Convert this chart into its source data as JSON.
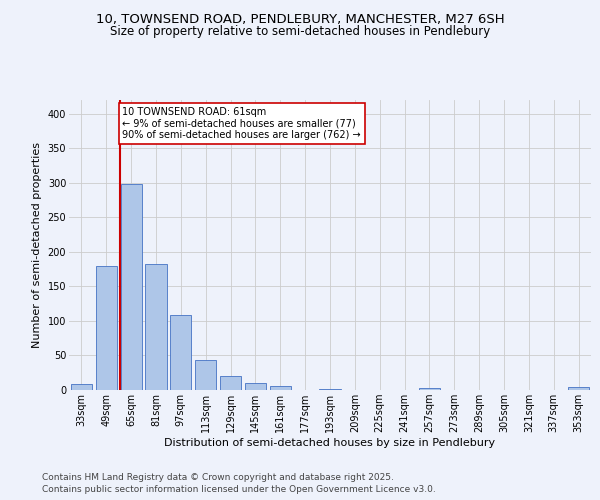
{
  "title_line1": "10, TOWNSEND ROAD, PENDLEBURY, MANCHESTER, M27 6SH",
  "title_line2": "Size of property relative to semi-detached houses in Pendlebury",
  "xlabel": "Distribution of semi-detached houses by size in Pendlebury",
  "ylabel": "Number of semi-detached properties",
  "footer_line1": "Contains HM Land Registry data © Crown copyright and database right 2025.",
  "footer_line2": "Contains public sector information licensed under the Open Government Licence v3.0.",
  "bin_labels": [
    "33sqm",
    "49sqm",
    "65sqm",
    "81sqm",
    "97sqm",
    "113sqm",
    "129sqm",
    "145sqm",
    "161sqm",
    "177sqm",
    "193sqm",
    "209sqm",
    "225sqm",
    "241sqm",
    "257sqm",
    "273sqm",
    "289sqm",
    "305sqm",
    "321sqm",
    "337sqm",
    "353sqm"
  ],
  "bar_values": [
    8,
    180,
    298,
    183,
    109,
    44,
    20,
    10,
    6,
    0,
    2,
    0,
    0,
    0,
    3,
    0,
    0,
    0,
    0,
    0,
    4
  ],
  "bar_color": "#aec6e8",
  "bar_edge_color": "#4472c4",
  "annotation_box_text": "10 TOWNSEND ROAD: 61sqm\n← 9% of semi-detached houses are smaller (77)\n90% of semi-detached houses are larger (762) →",
  "vline_x_index": 2,
  "vline_color": "#cc0000",
  "ylim": [
    0,
    420
  ],
  "yticks": [
    0,
    50,
    100,
    150,
    200,
    250,
    300,
    350,
    400
  ],
  "grid_color": "#cccccc",
  "background_color": "#eef2fb",
  "title_fontsize": 9.5,
  "subtitle_fontsize": 8.5,
  "axis_label_fontsize": 8,
  "tick_fontsize": 7,
  "annotation_fontsize": 7,
  "footer_fontsize": 6.5
}
